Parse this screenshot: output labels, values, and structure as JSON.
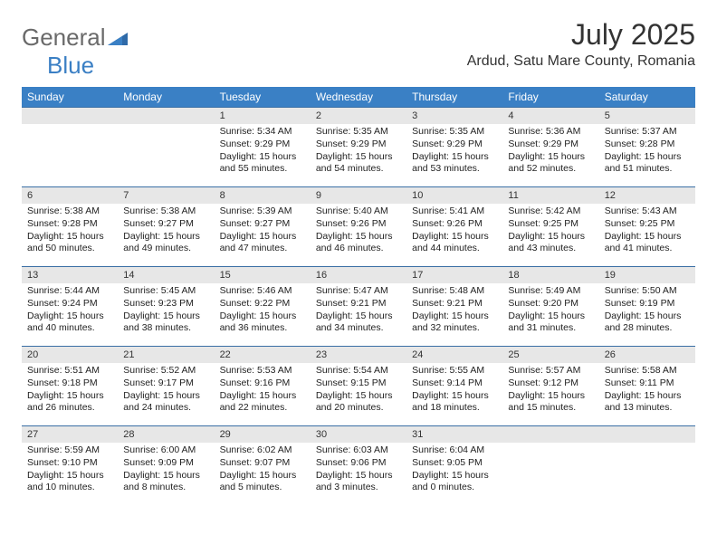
{
  "logo": {
    "text1": "General",
    "text2": "Blue"
  },
  "title": "July 2025",
  "location": "Ardud, Satu Mare County, Romania",
  "colors": {
    "header_bg": "#3a80c5",
    "header_text": "#ffffff",
    "daynum_bg": "#e7e7e7",
    "row_border": "#3a6fa5",
    "logo_gray": "#6a6a6a",
    "logo_blue": "#3a7fc4"
  },
  "weekdays": [
    "Sunday",
    "Monday",
    "Tuesday",
    "Wednesday",
    "Thursday",
    "Friday",
    "Saturday"
  ],
  "weeks": [
    [
      null,
      null,
      {
        "n": "1",
        "sr": "5:34 AM",
        "ss": "9:29 PM",
        "dl": "15 hours and 55 minutes."
      },
      {
        "n": "2",
        "sr": "5:35 AM",
        "ss": "9:29 PM",
        "dl": "15 hours and 54 minutes."
      },
      {
        "n": "3",
        "sr": "5:35 AM",
        "ss": "9:29 PM",
        "dl": "15 hours and 53 minutes."
      },
      {
        "n": "4",
        "sr": "5:36 AM",
        "ss": "9:29 PM",
        "dl": "15 hours and 52 minutes."
      },
      {
        "n": "5",
        "sr": "5:37 AM",
        "ss": "9:28 PM",
        "dl": "15 hours and 51 minutes."
      }
    ],
    [
      {
        "n": "6",
        "sr": "5:38 AM",
        "ss": "9:28 PM",
        "dl": "15 hours and 50 minutes."
      },
      {
        "n": "7",
        "sr": "5:38 AM",
        "ss": "9:27 PM",
        "dl": "15 hours and 49 minutes."
      },
      {
        "n": "8",
        "sr": "5:39 AM",
        "ss": "9:27 PM",
        "dl": "15 hours and 47 minutes."
      },
      {
        "n": "9",
        "sr": "5:40 AM",
        "ss": "9:26 PM",
        "dl": "15 hours and 46 minutes."
      },
      {
        "n": "10",
        "sr": "5:41 AM",
        "ss": "9:26 PM",
        "dl": "15 hours and 44 minutes."
      },
      {
        "n": "11",
        "sr": "5:42 AM",
        "ss": "9:25 PM",
        "dl": "15 hours and 43 minutes."
      },
      {
        "n": "12",
        "sr": "5:43 AM",
        "ss": "9:25 PM",
        "dl": "15 hours and 41 minutes."
      }
    ],
    [
      {
        "n": "13",
        "sr": "5:44 AM",
        "ss": "9:24 PM",
        "dl": "15 hours and 40 minutes."
      },
      {
        "n": "14",
        "sr": "5:45 AM",
        "ss": "9:23 PM",
        "dl": "15 hours and 38 minutes."
      },
      {
        "n": "15",
        "sr": "5:46 AM",
        "ss": "9:22 PM",
        "dl": "15 hours and 36 minutes."
      },
      {
        "n": "16",
        "sr": "5:47 AM",
        "ss": "9:21 PM",
        "dl": "15 hours and 34 minutes."
      },
      {
        "n": "17",
        "sr": "5:48 AM",
        "ss": "9:21 PM",
        "dl": "15 hours and 32 minutes."
      },
      {
        "n": "18",
        "sr": "5:49 AM",
        "ss": "9:20 PM",
        "dl": "15 hours and 31 minutes."
      },
      {
        "n": "19",
        "sr": "5:50 AM",
        "ss": "9:19 PM",
        "dl": "15 hours and 28 minutes."
      }
    ],
    [
      {
        "n": "20",
        "sr": "5:51 AM",
        "ss": "9:18 PM",
        "dl": "15 hours and 26 minutes."
      },
      {
        "n": "21",
        "sr": "5:52 AM",
        "ss": "9:17 PM",
        "dl": "15 hours and 24 minutes."
      },
      {
        "n": "22",
        "sr": "5:53 AM",
        "ss": "9:16 PM",
        "dl": "15 hours and 22 minutes."
      },
      {
        "n": "23",
        "sr": "5:54 AM",
        "ss": "9:15 PM",
        "dl": "15 hours and 20 minutes."
      },
      {
        "n": "24",
        "sr": "5:55 AM",
        "ss": "9:14 PM",
        "dl": "15 hours and 18 minutes."
      },
      {
        "n": "25",
        "sr": "5:57 AM",
        "ss": "9:12 PM",
        "dl": "15 hours and 15 minutes."
      },
      {
        "n": "26",
        "sr": "5:58 AM",
        "ss": "9:11 PM",
        "dl": "15 hours and 13 minutes."
      }
    ],
    [
      {
        "n": "27",
        "sr": "5:59 AM",
        "ss": "9:10 PM",
        "dl": "15 hours and 10 minutes."
      },
      {
        "n": "28",
        "sr": "6:00 AM",
        "ss": "9:09 PM",
        "dl": "15 hours and 8 minutes."
      },
      {
        "n": "29",
        "sr": "6:02 AM",
        "ss": "9:07 PM",
        "dl": "15 hours and 5 minutes."
      },
      {
        "n": "30",
        "sr": "6:03 AM",
        "ss": "9:06 PM",
        "dl": "15 hours and 3 minutes."
      },
      {
        "n": "31",
        "sr": "6:04 AM",
        "ss": "9:05 PM",
        "dl": "15 hours and 0 minutes."
      },
      null,
      null
    ]
  ],
  "labels": {
    "sunrise": "Sunrise: ",
    "sunset": "Sunset: ",
    "daylight": "Daylight: "
  }
}
